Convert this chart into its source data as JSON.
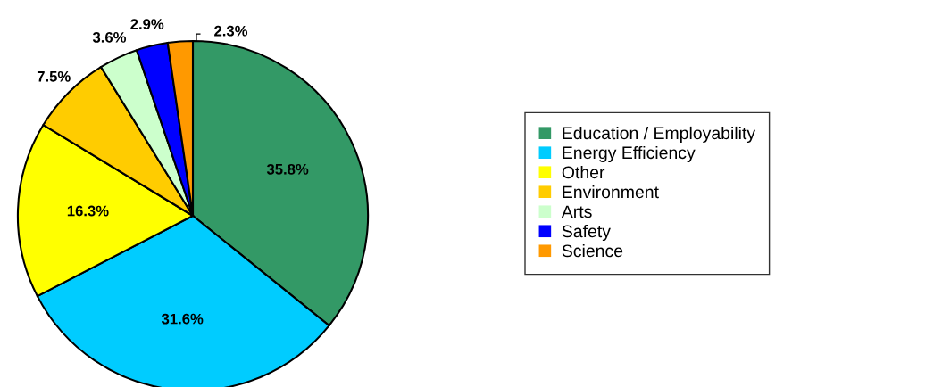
{
  "chart_data": {
    "type": "pie",
    "categories": [
      "Education / Employability",
      "Energy Efficiency",
      "Other",
      "Environment",
      "Arts",
      "Safety",
      "Science"
    ],
    "values": [
      35.8,
      31.6,
      16.3,
      7.5,
      3.6,
      2.9,
      2.3
    ],
    "value_labels": [
      "35.8%",
      "31.6%",
      "16.3%",
      "7.5%",
      "3.6%",
      "2.9%",
      "2.3%"
    ],
    "colors": [
      "#339966",
      "#00ccff",
      "#ffff00",
      "#ffcc00",
      "#ccffcc",
      "#0000ff",
      "#ff9900"
    ],
    "legend": "right"
  }
}
